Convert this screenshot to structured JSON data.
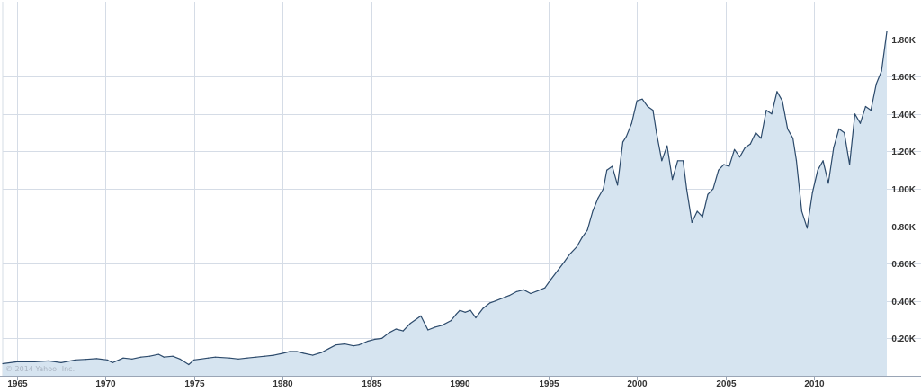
{
  "chart_data": {
    "type": "area",
    "title": "",
    "xlabel": "",
    "ylabel": "",
    "copyright": "© 2014 Yahoo! Inc.",
    "x_ticks": [
      "1965",
      "1970",
      "1975",
      "1980",
      "1985",
      "1990",
      "1995",
      "2000",
      "2005",
      "2010"
    ],
    "y_ticks": [
      {
        "value": 200,
        "label": "0.20K"
      },
      {
        "value": 400,
        "label": "0.40K"
      },
      {
        "value": 600,
        "label": "0.60K"
      },
      {
        "value": 800,
        "label": "0.80K"
      },
      {
        "value": 1000,
        "label": "1.00K"
      },
      {
        "value": 1200,
        "label": "1.20K"
      },
      {
        "value": 1400,
        "label": "1.40K"
      },
      {
        "value": 1600,
        "label": "1.60K"
      },
      {
        "value": 1800,
        "label": "1.80K"
      }
    ],
    "xlim": [
      1964.2,
      2014.1
    ],
    "ylim": [
      0,
      2000
    ],
    "grid": true,
    "colors": {
      "line": "#2c4a6b",
      "fill": "#d6e4f0",
      "grid": "#d5dce6"
    },
    "series": [
      {
        "x": [
          1964.2,
          1965.0,
          1966.0,
          1966.8,
          1967.5,
          1968.3,
          1968.9,
          1969.5,
          1970.1,
          1970.4,
          1971.0,
          1971.5,
          1972.0,
          1972.5,
          1973.0,
          1973.3,
          1973.8,
          1974.2,
          1974.7,
          1975.0,
          1975.4,
          1975.8,
          1976.2,
          1977.0,
          1977.5,
          1978.0,
          1978.5,
          1979.0,
          1979.5,
          1980.0,
          1980.4,
          1980.8,
          1981.2,
          1981.7,
          1982.2,
          1982.6,
          1983.0,
          1983.5,
          1984.0,
          1984.3,
          1984.8,
          1985.2,
          1985.6,
          1986.0,
          1986.4,
          1986.8,
          1987.2,
          1987.5,
          1987.8,
          1988.2,
          1988.6,
          1989.0,
          1989.5,
          1989.8,
          1990.0,
          1990.3,
          1990.6,
          1990.9,
          1991.3,
          1991.7,
          1992.0,
          1992.4,
          1992.8,
          1993.2,
          1993.6,
          1994.0,
          1994.4,
          1994.8,
          1995.1,
          1995.5,
          1995.9,
          1996.2,
          1996.6,
          1996.9,
          1997.2,
          1997.5,
          1997.8,
          1998.1,
          1998.3,
          1998.6,
          1998.9,
          1999.2,
          1999.4,
          1999.7,
          2000.0,
          2000.3,
          2000.6,
          2000.9,
          2001.1,
          2001.4,
          2001.7,
          2002.0,
          2002.3,
          2002.6,
          2002.8,
          2003.1,
          2003.4,
          2003.7,
          2004.0,
          2004.3,
          2004.6,
          2004.9,
          2005.2,
          2005.5,
          2005.8,
          2006.1,
          2006.4,
          2006.7,
          2007.0,
          2007.3,
          2007.6,
          2007.9,
          2008.2,
          2008.5,
          2008.8,
          2009.0,
          2009.3,
          2009.6,
          2009.9,
          2010.2,
          2010.5,
          2010.8,
          2011.1,
          2011.4,
          2011.7,
          2012.0,
          2012.3,
          2012.6,
          2012.9,
          2013.2,
          2013.5,
          2013.8,
          2014.1
        ],
        "y": [
          65,
          75,
          75,
          80,
          70,
          85,
          88,
          92,
          85,
          70,
          95,
          90,
          100,
          105,
          115,
          100,
          105,
          90,
          60,
          85,
          90,
          95,
          100,
          95,
          90,
          95,
          100,
          105,
          110,
          120,
          130,
          130,
          120,
          110,
          125,
          145,
          165,
          170,
          160,
          165,
          185,
          195,
          200,
          230,
          250,
          240,
          280,
          300,
          320,
          245,
          260,
          270,
          295,
          330,
          350,
          340,
          350,
          310,
          360,
          390,
          400,
          415,
          430,
          450,
          460,
          440,
          455,
          470,
          510,
          560,
          610,
          650,
          690,
          740,
          780,
          880,
          950,
          1000,
          1100,
          1120,
          1020,
          1250,
          1280,
          1350,
          1470,
          1480,
          1440,
          1420,
          1300,
          1150,
          1230,
          1050,
          1150,
          1150,
          1000,
          820,
          880,
          850,
          970,
          1000,
          1100,
          1130,
          1120,
          1210,
          1170,
          1220,
          1240,
          1300,
          1270,
          1420,
          1400,
          1520,
          1470,
          1320,
          1270,
          1150,
          880,
          790,
          980,
          1100,
          1150,
          1030,
          1220,
          1320,
          1300,
          1130,
          1400,
          1350,
          1440,
          1420,
          1560,
          1630,
          1840
        ]
      }
    ]
  }
}
